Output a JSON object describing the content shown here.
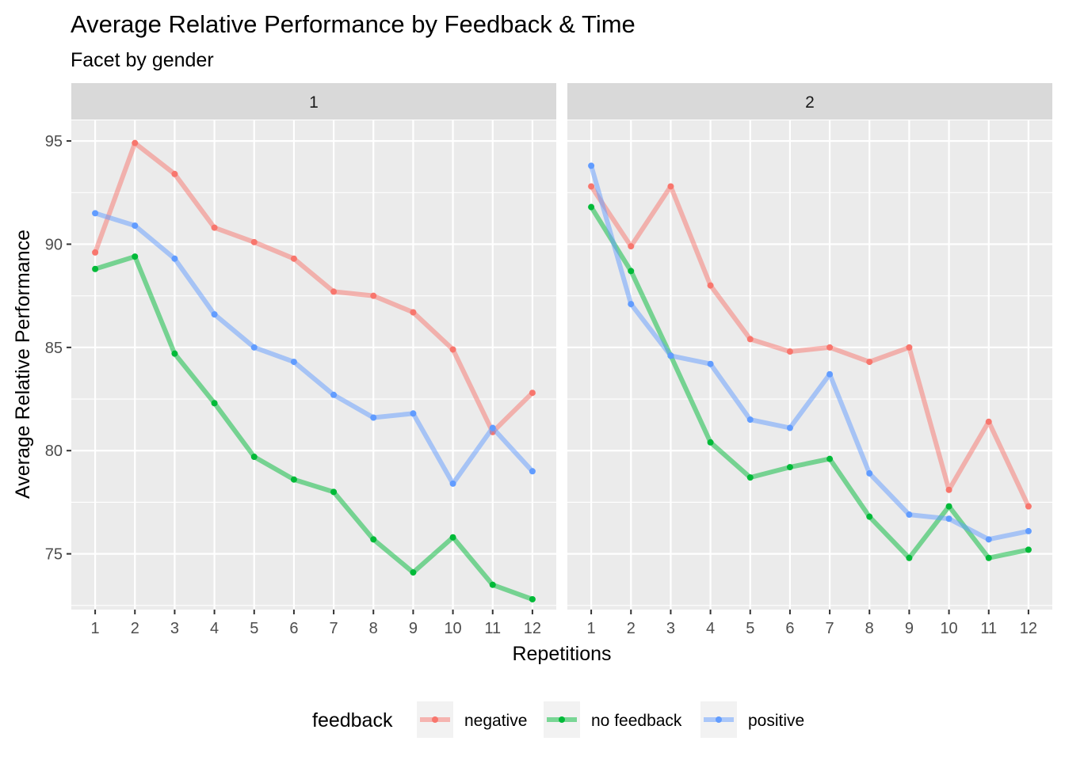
{
  "chart_data": {
    "type": "line",
    "title": "Average Relative Performance by Feedback & Time",
    "subtitle": "Facet by gender",
    "xlabel": "Repetitions",
    "ylabel": "Average Relative Performance",
    "x": [
      1,
      2,
      3,
      4,
      5,
      6,
      7,
      8,
      9,
      10,
      11,
      12
    ],
    "x_ticks": [
      "1",
      "2",
      "3",
      "4",
      "5",
      "6",
      "7",
      "8",
      "9",
      "10",
      "11",
      "12"
    ],
    "y_ticks": [
      75,
      80,
      85,
      90,
      95
    ],
    "ylim": [
      72.3,
      96
    ],
    "grid": true,
    "legend": {
      "title": "feedback",
      "position": "bottom"
    },
    "colors": {
      "negative": "#F8766D",
      "no feedback": "#00BA38",
      "positive": "#619CFF",
      "panel_bg": "#EBEBEB",
      "strip_bg": "#D9D9D9",
      "grid": "#FFFFFF"
    },
    "facet_variable": "gender",
    "facets": [
      {
        "label": "1",
        "series": [
          {
            "name": "negative",
            "values": [
              89.6,
              94.9,
              93.4,
              90.8,
              90.1,
              89.3,
              87.7,
              87.5,
              86.7,
              84.9,
              80.9,
              82.8
            ]
          },
          {
            "name": "no feedback",
            "values": [
              88.8,
              89.4,
              84.7,
              82.3,
              79.7,
              78.6,
              78.0,
              75.7,
              74.1,
              75.8,
              73.5,
              72.8
            ]
          },
          {
            "name": "positive",
            "values": [
              91.5,
              90.9,
              89.3,
              86.6,
              85.0,
              84.3,
              82.7,
              81.6,
              81.8,
              78.4,
              81.1,
              79.0
            ]
          }
        ]
      },
      {
        "label": "2",
        "series": [
          {
            "name": "negative",
            "values": [
              92.8,
              89.9,
              92.8,
              88.0,
              85.4,
              84.8,
              85.0,
              84.3,
              85.0,
              78.1,
              81.4,
              77.3
            ]
          },
          {
            "name": "no feedback",
            "values": [
              91.8,
              88.7,
              84.6,
              80.4,
              78.7,
              79.2,
              79.6,
              76.8,
              74.8,
              77.3,
              74.8,
              75.2
            ]
          },
          {
            "name": "positive",
            "values": [
              93.8,
              87.1,
              84.6,
              84.2,
              81.5,
              81.1,
              83.7,
              78.9,
              76.9,
              76.7,
              75.7,
              76.1
            ]
          }
        ]
      }
    ]
  }
}
